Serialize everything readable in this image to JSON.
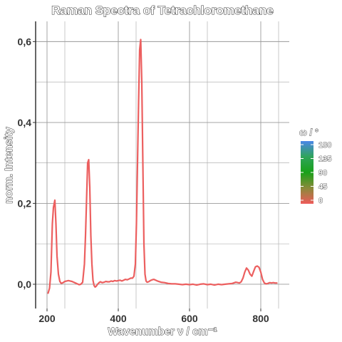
{
  "chart_data": {
    "type": "line",
    "title": "Raman Spectra of Tetrachloromethane",
    "xlabel": "Wavenumber ν / cm⁻¹",
    "ylabel": "norm. Intensity",
    "xlim": [
      168,
      880
    ],
    "ylim": [
      -0.06,
      0.65
    ],
    "xticks": [
      200,
      400,
      600,
      800
    ],
    "xtick_labels": [
      "200",
      "400",
      "600",
      "800"
    ],
    "yticks": [
      0.0,
      0.2,
      0.4,
      0.6
    ],
    "ytick_labels": [
      "0,0",
      "0,2",
      "0,4",
      "0,6"
    ],
    "grid": true,
    "legend": {
      "title": "ω / °",
      "position": "right",
      "type": "colorbar",
      "labels": [
        "180",
        "135",
        "90",
        "45",
        "0"
      ],
      "colors": [
        "#4a86e8",
        "#2fa45a",
        "#19a119",
        "#8a8a3a",
        "#ee5a5a"
      ]
    },
    "series": [
      {
        "color": "#ec5f5f",
        "x": [
          203,
          207,
          211,
          215,
          218,
          222,
          225,
          228,
          232,
          236,
          240,
          245,
          250,
          255,
          260,
          265,
          270,
          275,
          280,
          285,
          290,
          295,
          300,
          305,
          308,
          311,
          314,
          317,
          320,
          323,
          326,
          329,
          332,
          335,
          338,
          342,
          346,
          350,
          355,
          360,
          365,
          370,
          375,
          380,
          385,
          390,
          395,
          400,
          405,
          410,
          415,
          420,
          425,
          430,
          435,
          440,
          444,
          448,
          451,
          454,
          457,
          460,
          463,
          466,
          469,
          472,
          475,
          478,
          481,
          485,
          490,
          495,
          500,
          505,
          510,
          520,
          530,
          540,
          550,
          560,
          570,
          580,
          590,
          600,
          610,
          620,
          630,
          640,
          650,
          660,
          670,
          680,
          690,
          700,
          710,
          720,
          730,
          740,
          745,
          750,
          755,
          760,
          765,
          770,
          775,
          780,
          785,
          790,
          795,
          800,
          805,
          810,
          815,
          820,
          825,
          830,
          835,
          840,
          845
        ],
        "y": [
          -0.022,
          -0.01,
          0.03,
          0.15,
          0.19,
          0.208,
          0.15,
          0.07,
          0.025,
          0.007,
          0.002,
          0.004,
          0.007,
          0.008,
          0.009,
          0.008,
          0.007,
          0.005,
          0.003,
          0.001,
          -0.001,
          0.0,
          0.005,
          0.05,
          0.12,
          0.21,
          0.3,
          0.308,
          0.24,
          0.12,
          0.05,
          0.01,
          -0.003,
          -0.007,
          -0.005,
          0.0,
          0.004,
          0.006,
          0.004,
          0.005,
          0.007,
          0.006,
          0.006,
          0.008,
          0.007,
          0.009,
          0.008,
          0.009,
          0.01,
          0.008,
          0.01,
          0.012,
          0.011,
          0.013,
          0.015,
          0.015,
          0.02,
          0.05,
          0.15,
          0.3,
          0.45,
          0.58,
          0.605,
          0.5,
          0.3,
          0.1,
          0.025,
          0.008,
          0.005,
          0.006,
          0.009,
          0.011,
          0.012,
          0.01,
          0.008,
          0.005,
          0.004,
          0.002,
          0.001,
          0.001,
          0.0,
          -0.001,
          0.0,
          -0.001,
          0.0,
          -0.002,
          0.0,
          0.001,
          -0.001,
          0.0,
          -0.002,
          0.0,
          -0.001,
          0.0,
          0.001,
          0.002,
          0.005,
          0.003,
          0.006,
          0.015,
          0.03,
          0.04,
          0.035,
          0.025,
          0.02,
          0.032,
          0.043,
          0.045,
          0.042,
          0.03,
          0.012,
          0.003,
          0.001,
          0.002,
          0.004,
          0.003,
          0.004,
          0.003,
          0.003
        ]
      }
    ]
  }
}
